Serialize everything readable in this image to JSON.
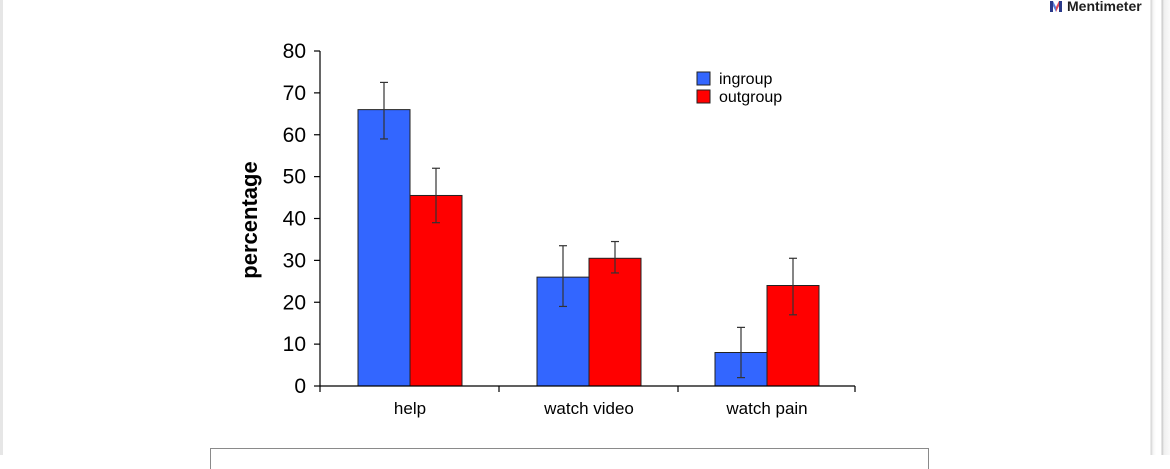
{
  "brand": {
    "name": "Mentimeter"
  },
  "chart_data": {
    "type": "bar",
    "categories": [
      "help",
      "watch video",
      "watch pain"
    ],
    "series": [
      {
        "name": "ingroup",
        "color": "#3366ff",
        "values": [
          66,
          26,
          8
        ],
        "error": [
          [
            59,
            72.5
          ],
          [
            19,
            33.5
          ],
          [
            2,
            14
          ]
        ]
      },
      {
        "name": "outgroup",
        "color": "#ff0000",
        "values": [
          45.5,
          30.5,
          24
        ],
        "error": [
          [
            39,
            52
          ],
          [
            27,
            34.5
          ],
          [
            17,
            30.5
          ]
        ]
      }
    ],
    "title": "",
    "xlabel": "",
    "ylabel": "percentage",
    "ylim": [
      0,
      80
    ],
    "yticks": [
      0,
      10,
      20,
      30,
      40,
      50,
      60,
      70,
      80
    ],
    "legend": "top-right",
    "grid": false
  }
}
